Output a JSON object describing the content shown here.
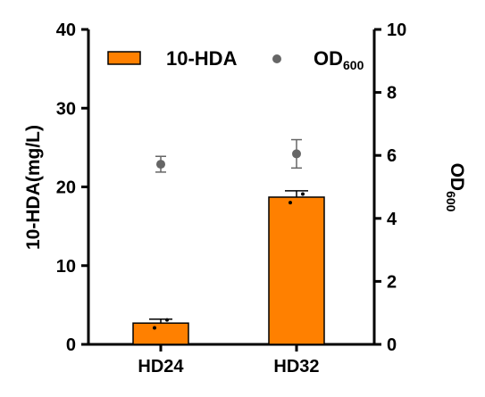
{
  "chart_data": {
    "type": "bar",
    "categories": [
      "HD24",
      "HD32"
    ],
    "title": "",
    "xlabel": "",
    "series": [
      {
        "name": "10-HDA",
        "kind": "bar",
        "axis": "left",
        "color": "#FF8000",
        "values": [
          2.7,
          18.7
        ],
        "error": [
          0.5,
          0.8
        ],
        "replicates": [
          [
            2.1,
            3.1
          ],
          [
            18.0,
            19.1
          ]
        ]
      },
      {
        "name": "OD",
        "name_subscript": "600",
        "kind": "scatter",
        "axis": "right",
        "color": "#666666",
        "values": [
          5.72,
          6.05
        ],
        "error": [
          0.25,
          0.45
        ]
      }
    ],
    "y_left": {
      "label": "10-HDA(mg/L)",
      "ylim": [
        0,
        40
      ],
      "ticks": [
        "0",
        "10",
        "20",
        "30",
        "40"
      ]
    },
    "y_right": {
      "label": "OD",
      "label_subscript": "600",
      "ylim": [
        0,
        10
      ],
      "ticks": [
        "0",
        "2",
        "4",
        "6",
        "8",
        "10"
      ]
    },
    "grid": false,
    "legend": "top"
  }
}
